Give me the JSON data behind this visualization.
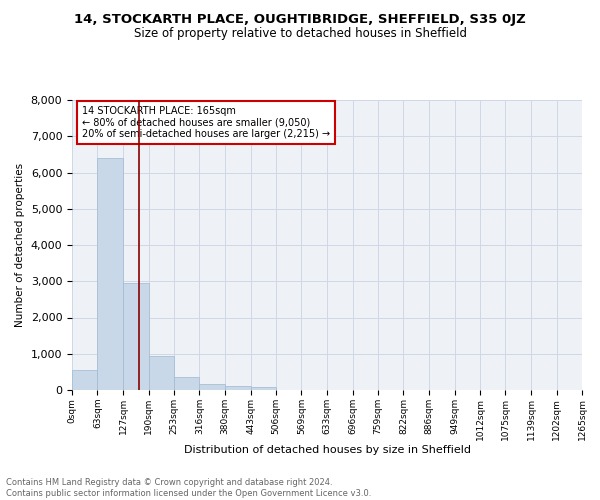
{
  "title": "14, STOCKARTH PLACE, OUGHTIBRIDGE, SHEFFIELD, S35 0JZ",
  "subtitle": "Size of property relative to detached houses in Sheffield",
  "xlabel": "Distribution of detached houses by size in Sheffield",
  "ylabel": "Number of detached properties",
  "bin_edges": [
    0,
    63,
    127,
    190,
    253,
    316,
    380,
    443,
    506,
    569,
    633,
    696,
    759,
    822,
    886,
    949,
    1012,
    1075,
    1139,
    1202,
    1265
  ],
  "bar_heights": [
    550,
    6400,
    2950,
    950,
    370,
    160,
    100,
    70,
    0,
    0,
    0,
    0,
    0,
    0,
    0,
    0,
    0,
    0,
    0,
    0
  ],
  "bar_color": "#c8d8e8",
  "bar_edgecolor": "#a0b8d0",
  "vline_x": 165,
  "vline_color": "#8b0000",
  "ylim": [
    0,
    8000
  ],
  "yticks": [
    0,
    1000,
    2000,
    3000,
    4000,
    5000,
    6000,
    7000,
    8000
  ],
  "annotation_text": "14 STOCKARTH PLACE: 165sqm\n← 80% of detached houses are smaller (9,050)\n20% of semi-detached houses are larger (2,215) →",
  "annotation_box_edgecolor": "#cc0000",
  "grid_color": "#d0d8e8",
  "background_color": "#eef2f7",
  "footer_text": "Contains HM Land Registry data © Crown copyright and database right 2024.\nContains public sector information licensed under the Open Government Licence v3.0.",
  "tick_labels": [
    "0sqm",
    "63sqm",
    "127sqm",
    "190sqm",
    "253sqm",
    "316sqm",
    "380sqm",
    "443sqm",
    "506sqm",
    "569sqm",
    "633sqm",
    "696sqm",
    "759sqm",
    "822sqm",
    "886sqm",
    "949sqm",
    "1012sqm",
    "1075sqm",
    "1139sqm",
    "1202sqm",
    "1265sqm"
  ]
}
